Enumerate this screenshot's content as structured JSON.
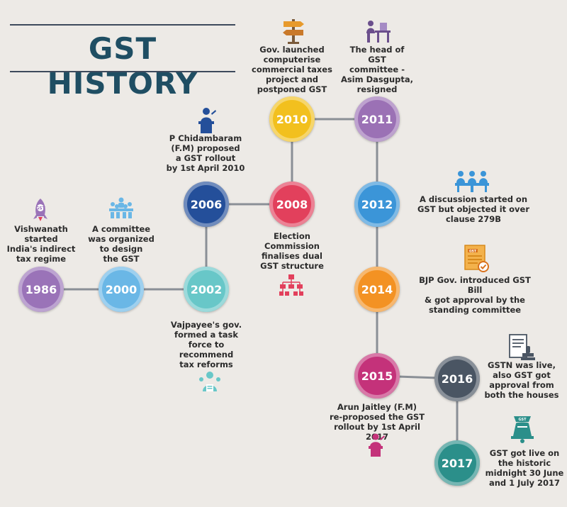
{
  "title": "GST HISTORY",
  "colors": {
    "background": "#edeae6",
    "title": "#1f4e63",
    "connector": "#8a8f96",
    "1986": "#9a73b8",
    "2000": "#6ab7e6",
    "2002": "#68c7c8",
    "2006": "#244f9a",
    "2008": "#e2405c",
    "2010": "#f2c01e",
    "2011": "#9b71b5",
    "2012": "#3b95d8",
    "2014": "#f39223",
    "2015": "#c4327a",
    "2016": "#4a5563",
    "2017": "#2b8f8a"
  },
  "events": [
    {
      "year": "1986",
      "text": "Vishwanath\nstarted\nIndia's indirect\ntax regime",
      "icon": "rocket-icon"
    },
    {
      "year": "2000",
      "text": "A committee\nwas organized\nto design\nthe GST",
      "icon": "committee-icon"
    },
    {
      "year": "2002",
      "text": "Vajpayee's gov.\nformed a task\nforce to\nrecommend\ntax reforms",
      "icon": "task-force-icon"
    },
    {
      "year": "2006",
      "text": "P Chidambaram\n(F.M) proposed\na GST rollout\nby 1st April 2010",
      "icon": "podium-speaker-icon"
    },
    {
      "year": "2008",
      "text": "Election\nCommission\nfinalises dual\nGST structure",
      "icon": "hierarchy-icon"
    },
    {
      "year": "2010",
      "text": "Gov. launched\ncomputerise\ncommercial taxes\nproject and\npostponed GST",
      "icon": "signpost-icon"
    },
    {
      "year": "2011",
      "text": "The head of\nGST\ncommittee -\nAsim Dasgupta,\nresigned",
      "icon": "resign-desk-icon"
    },
    {
      "year": "2012",
      "text": "A discussion started on\nGST but objected it over\nclause 279B",
      "icon": "meeting-icon"
    },
    {
      "year": "2014",
      "text": "BJP Gov. introduced GST Bill\n& got approval by the\nstanding committee",
      "icon": "approved-document-icon"
    },
    {
      "year": "2015",
      "text": "Arun Jaitley (F.M)\nre-proposed the GST\nrollout by 1st April 2017",
      "icon": "speaker-icon"
    },
    {
      "year": "2016",
      "text": "GSTN was live,\nalso GST got\napproval from\nboth the houses",
      "icon": "stamp-document-icon"
    },
    {
      "year": "2017",
      "text": "GST got live on\nthe historic\nmidnight 30 June\nand 1 July 2017",
      "icon": "gst-bell-icon"
    }
  ]
}
